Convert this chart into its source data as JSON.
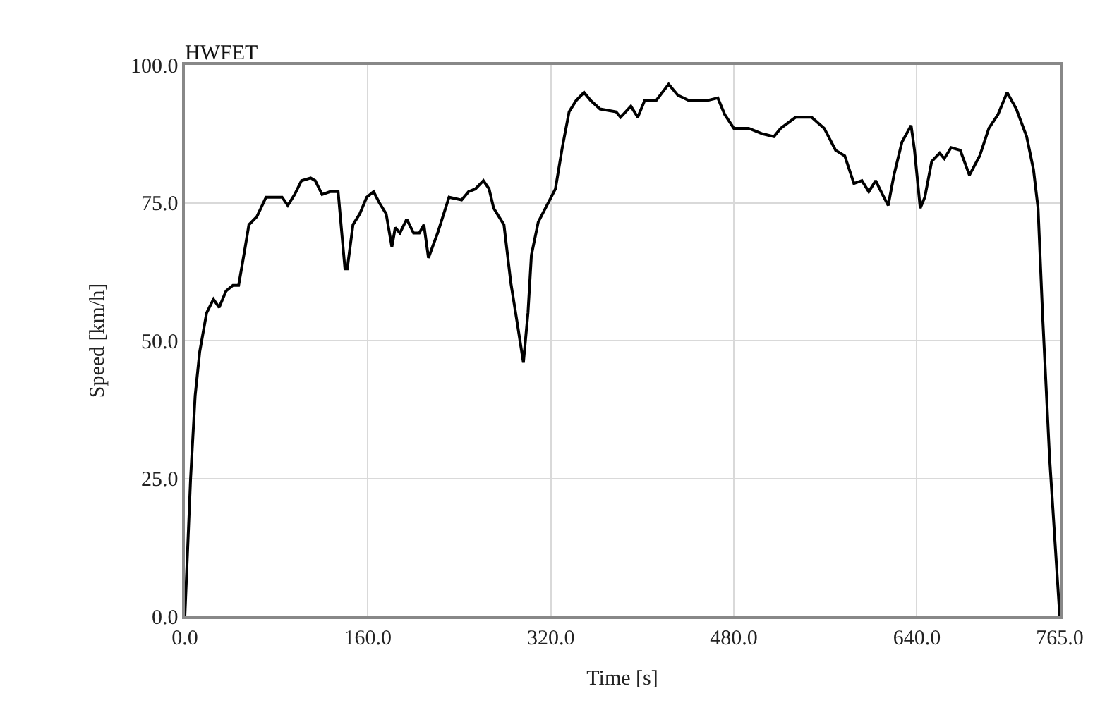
{
  "chart_data": {
    "type": "line",
    "title": "HWFET",
    "xlabel": "Time [s]",
    "ylabel": "Speed [km/h]",
    "xlim": [
      0,
      765
    ],
    "ylim": [
      0,
      100
    ],
    "xticks": [
      {
        "value": 0,
        "label": "0.0"
      },
      {
        "value": 160,
        "label": "160.0"
      },
      {
        "value": 320,
        "label": "320.0"
      },
      {
        "value": 480,
        "label": "480.0"
      },
      {
        "value": 640,
        "label": "640.0"
      },
      {
        "value": 765,
        "label": "765.0"
      }
    ],
    "yticks": [
      {
        "value": 0,
        "label": "0.0"
      },
      {
        "value": 25,
        "label": "25.0"
      },
      {
        "value": 50,
        "label": "50.0"
      },
      {
        "value": 75,
        "label": "75.0"
      },
      {
        "value": 100,
        "label": "100.0"
      }
    ],
    "grid": true,
    "marker": "none",
    "line_style": "solid",
    "series": [
      {
        "color": "#000000",
        "x": [
          0,
          5,
          9,
          13,
          19,
          25,
          30,
          36,
          42,
          47,
          52,
          56,
          63,
          71,
          79,
          85,
          90,
          96,
          102,
          110,
          114,
          120,
          127,
          134,
          140,
          142,
          147,
          153,
          159,
          165,
          170,
          176,
          181,
          184,
          188,
          194,
          200,
          205,
          209,
          213,
          221,
          231,
          242,
          248,
          254,
          261,
          266,
          270,
          279,
          285,
          290,
          296,
          300,
          303,
          309,
          319,
          324,
          330,
          336,
          342,
          349,
          355,
          363,
          377,
          381,
          390,
          396,
          402,
          412,
          423,
          431,
          441,
          456,
          466,
          472,
          480,
          493,
          505,
          515,
          521,
          534,
          548,
          559,
          569,
          577,
          585,
          592,
          598,
          604,
          610,
          615,
          620,
          627,
          635,
          638,
          643,
          647,
          653,
          660,
          664,
          670,
          678,
          686,
          695,
          703,
          711,
          719,
          727,
          736,
          742,
          746,
          750,
          756,
          765
        ],
        "values": [
          0,
          25,
          40,
          48,
          55,
          57.5,
          56,
          59,
          60,
          60,
          66,
          71,
          72.5,
          76,
          76,
          76,
          74.5,
          76.5,
          79,
          79.5,
          79,
          76.5,
          77,
          77,
          63,
          63,
          71,
          73,
          76,
          77,
          75,
          73,
          67,
          70.5,
          69.5,
          72,
          69.5,
          69.5,
          71,
          65,
          69.5,
          76,
          75.5,
          77,
          77.5,
          79,
          77.5,
          74,
          71,
          60.5,
          54,
          46,
          55,
          65.5,
          71.5,
          75.5,
          77.5,
          85,
          91.5,
          93.5,
          95,
          93.5,
          92,
          91.5,
          90.5,
          92.5,
          90.5,
          93.5,
          93.5,
          96.5,
          94.5,
          93.5,
          93.5,
          94,
          91,
          88.5,
          88.5,
          87.5,
          87,
          88.5,
          90.5,
          90.5,
          88.5,
          84.5,
          83.5,
          78.5,
          79,
          77,
          79,
          76.5,
          74.5,
          80,
          86,
          89,
          84.5,
          74,
          76,
          82.5,
          84,
          83,
          85,
          84.5,
          80,
          83.5,
          88.5,
          91,
          95,
          92,
          87,
          81,
          74,
          54.5,
          29,
          0
        ]
      }
    ]
  }
}
